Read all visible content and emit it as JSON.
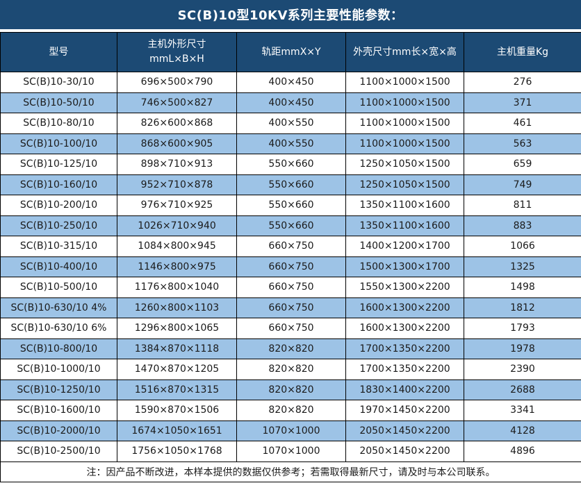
{
  "title": "SC(B)10型10KV系列主要性能参数：",
  "colors": {
    "header_bg": "#1C4A74",
    "header_text": "#FFFFFF",
    "row_bg": "#FFFFFF",
    "row_alt_bg": "#9DC3E6",
    "border": "#000000",
    "cell_text": "#1A1A1A"
  },
  "table": {
    "columns": [
      {
        "label": "型号"
      },
      {
        "label": "主机外形尺寸",
        "label2": "mmL×B×H"
      },
      {
        "label": "轨距mmX×Y"
      },
      {
        "label": "外壳尺寸mm长×宽×高"
      },
      {
        "label": "主机重量Kg"
      }
    ],
    "rows": [
      [
        "SC(B)10-30/10",
        "696×500×790",
        "400×450",
        "1100×1000×1500",
        "276"
      ],
      [
        "SC(B)10-50/10",
        "746×500×827",
        "400×450",
        "1100×1000×1500",
        "371"
      ],
      [
        "SC(B)10-80/10",
        "826×600×868",
        "400×550",
        "1100×1000×1500",
        "461"
      ],
      [
        "SC(B)10-100/10",
        "868×600×905",
        "400×550",
        "1100×1000×1500",
        "563"
      ],
      [
        "SC(B)10-125/10",
        "898×710×913",
        "550×660",
        "1250×1050×1500",
        "659"
      ],
      [
        "SC(B)10-160/10",
        "952×710×878",
        "550×660",
        "1250×1050×1500",
        "749"
      ],
      [
        "SC(B)10-200/10",
        "976×710×925",
        "550×660",
        "1350×1100×1600",
        "811"
      ],
      [
        "SC(B)10-250/10",
        "1026×710×940",
        "550×660",
        "1350×1100×1600",
        "883"
      ],
      [
        "SC(B)10-315/10",
        "1084×800×945",
        "660×750",
        "1400×1200×1700",
        "1066"
      ],
      [
        "SC(B)10-400/10",
        "1146×800×975",
        "660×750",
        "1500×1300×1700",
        "1325"
      ],
      [
        "SC(B)10-500/10",
        "1176×800×1040",
        "660×750",
        "1550×1300×2200",
        "1498"
      ],
      [
        "SC(B)10-630/10 4%",
        "1260×800×1103",
        "660×750",
        "1600×1300×2200",
        "1812"
      ],
      [
        "SC(B)10-630/10 6%",
        "1296×800×1065",
        "660×750",
        "1600×1300×2200",
        "1793"
      ],
      [
        "SC(B)10-800/10",
        "1384×870×1118",
        "820×820",
        "1700×1350×2200",
        "1978"
      ],
      [
        "SC(B)10-1000/10",
        "1470×870×1205",
        "820×820",
        "1700×1350×2200",
        "2390"
      ],
      [
        "SC(B)10-1250/10",
        "1516×870×1315",
        "820×820",
        "1830×1400×2200",
        "2688"
      ],
      [
        "SC(B)10-1600/10",
        "1590×870×1506",
        "820×820",
        "1970×1450×2200",
        "3341"
      ],
      [
        "SC(B)10-2000/10",
        "1674×1050×1651",
        "1070×1000",
        "2050×1450×2200",
        "4128"
      ],
      [
        "SC(B)10-2500/10",
        "1756×1050×1768",
        "1070×1000",
        "2050×1450×2200",
        "4896"
      ]
    ]
  },
  "note": "注：因产品不断改进，本样本提供的数据仅供参考；若需取得最新尺寸，请及时与本公司联系。"
}
